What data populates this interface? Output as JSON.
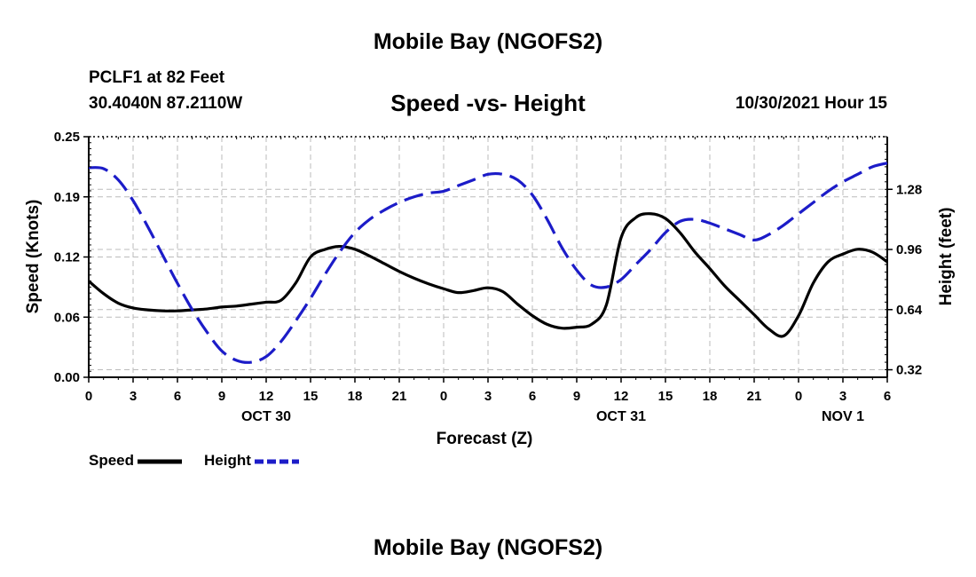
{
  "header": {
    "title": "Mobile Bay (NGOFS2)",
    "station": "PCLF1 at 82 Feet",
    "coords": "30.4040N  87.2110W",
    "chart_title": "Speed -vs- Height",
    "datetime": "10/30/2021 Hour 15"
  },
  "footer": {
    "title": "Mobile Bay (NGOFS2)"
  },
  "colors": {
    "speed": "#000000",
    "height": "#1c1cc8",
    "grid": "#bbbbbb"
  },
  "chart_data": {
    "type": "line",
    "title": "Speed -vs- Height",
    "xlabel": "Forecast (Z)",
    "ylabel": "Speed (Knots)",
    "y2label": "Height (feet)",
    "x_hours": [
      0,
      1,
      2,
      3,
      4,
      5,
      6,
      7,
      8,
      9,
      10,
      11,
      12,
      13,
      14,
      15,
      16,
      17,
      18,
      19,
      20,
      21,
      22,
      23,
      24,
      25,
      26,
      27,
      28,
      29,
      30,
      31,
      32,
      33,
      34,
      35,
      36,
      37,
      38,
      39,
      40,
      41,
      42,
      43,
      44,
      45,
      46,
      47,
      48,
      49,
      50,
      51,
      52,
      53,
      54
    ],
    "x_tick_labels": [
      "0",
      "3",
      "6",
      "9",
      "12",
      "15",
      "18",
      "21",
      "0",
      "3",
      "6",
      "9",
      "12",
      "15",
      "18",
      "21",
      "0",
      "3",
      "6"
    ],
    "date_labels": [
      {
        "label": "OCT 30",
        "hour": 12
      },
      {
        "label": "OCT 31",
        "hour": 36
      },
      {
        "label": "NOV 1",
        "hour": 51
      }
    ],
    "ylim": [
      0,
      0.25
    ],
    "y_ticks": [
      "0.00",
      "0.06",
      "0.12",
      "0.19",
      "0.25"
    ],
    "y_tick_values": [
      0,
      0.0625,
      0.125,
      0.1875,
      0.25
    ],
    "y2lim": [
      0.28,
      1.56
    ],
    "y2_ticks": [
      "0.32",
      "0.64",
      "0.96",
      "1.28"
    ],
    "y2_tick_values": [
      0.32,
      0.64,
      0.96,
      1.28
    ],
    "grid": true,
    "legend_position": "bottom-left",
    "series": [
      {
        "name": "Speed",
        "axis": "left",
        "style": "solid",
        "values": [
          0.1,
          0.087,
          0.077,
          0.072,
          0.07,
          0.069,
          0.069,
          0.07,
          0.071,
          0.073,
          0.074,
          0.076,
          0.078,
          0.08,
          0.098,
          0.125,
          0.133,
          0.136,
          0.133,
          0.126,
          0.118,
          0.11,
          0.103,
          0.097,
          0.092,
          0.088,
          0.09,
          0.093,
          0.089,
          0.076,
          0.064,
          0.055,
          0.051,
          0.052,
          0.055,
          0.075,
          0.145,
          0.166,
          0.17,
          0.165,
          0.15,
          0.13,
          0.113,
          0.095,
          0.08,
          0.065,
          0.05,
          0.043,
          0.064,
          0.098,
          0.12,
          0.128,
          0.133,
          0.13,
          0.12
        ]
      },
      {
        "name": "Height",
        "axis": "right",
        "style": "dashed",
        "values": [
          1.395,
          1.39,
          1.33,
          1.22,
          1.08,
          0.93,
          0.78,
          0.64,
          0.52,
          0.42,
          0.37,
          0.36,
          0.39,
          0.47,
          0.58,
          0.7,
          0.83,
          0.95,
          1.05,
          1.12,
          1.17,
          1.21,
          1.24,
          1.26,
          1.27,
          1.3,
          1.33,
          1.36,
          1.36,
          1.33,
          1.25,
          1.12,
          0.97,
          0.85,
          0.77,
          0.76,
          0.8,
          0.88,
          0.96,
          1.05,
          1.11,
          1.12,
          1.1,
          1.07,
          1.04,
          1.01,
          1.04,
          1.09,
          1.15,
          1.21,
          1.27,
          1.32,
          1.36,
          1.4,
          1.42
        ]
      }
    ]
  }
}
